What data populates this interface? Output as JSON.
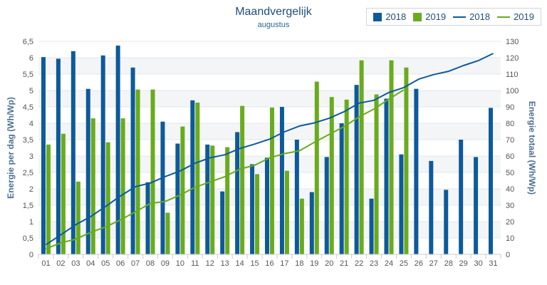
{
  "chart_data": {
    "type": "bar",
    "title": "Maandvergelijk",
    "subtitle": "augustus",
    "ylabel": "Energie per dag (Wh/Wp)",
    "y2label": "Energie totaal (Wh/Wp)",
    "ylim": [
      0,
      6.5
    ],
    "y2lim": [
      0,
      130
    ],
    "yticks": [
      "0",
      "0,5",
      "1",
      "1,5",
      "2",
      "2,5",
      "3",
      "3,5",
      "4",
      "4,5",
      "5",
      "5,5",
      "6",
      "6,5"
    ],
    "y2ticks": [
      "0",
      "10",
      "20",
      "30",
      "40",
      "50",
      "60",
      "70",
      "80",
      "90",
      "100",
      "110",
      "120",
      "130"
    ],
    "categories": [
      "01",
      "02",
      "03",
      "04",
      "05",
      "06",
      "07",
      "08",
      "09",
      "10",
      "11",
      "12",
      "13",
      "14",
      "15",
      "16",
      "17",
      "18",
      "19",
      "20",
      "21",
      "22",
      "23",
      "24",
      "25",
      "26",
      "27",
      "28",
      "29",
      "30",
      "31"
    ],
    "series": [
      {
        "name": "2018",
        "type": "bar",
        "axis": "left",
        "color": "#0d5a9b",
        "values": [
          6.02,
          5.97,
          6.2,
          5.05,
          6.07,
          6.37,
          5.7,
          2.2,
          4.05,
          3.38,
          4.7,
          3.35,
          1.92,
          3.73,
          2.75,
          2.95,
          4.5,
          3.5,
          1.9,
          2.97,
          4.0,
          5.17,
          1.7,
          4.75,
          3.05,
          5.05,
          2.85,
          1.97,
          3.5,
          2.97,
          4.47
        ]
      },
      {
        "name": "2019",
        "type": "bar",
        "axis": "left",
        "color": "#6aab1d",
        "values": [
          3.35,
          3.68,
          2.22,
          4.15,
          3.42,
          4.15,
          5.03,
          5.03,
          1.27,
          3.9,
          4.63,
          3.32,
          3.27,
          4.53,
          2.45,
          4.48,
          2.55,
          1.7,
          5.27,
          4.8,
          4.72,
          5.92,
          4.88,
          5.92,
          5.7,
          null,
          null,
          null,
          null,
          null,
          null
        ]
      },
      {
        "name": "2018",
        "type": "line",
        "axis": "right",
        "color": "#0d5a9b",
        "values": [
          5.9,
          11.9,
          18.1,
          23.1,
          29.2,
          35.6,
          41.3,
          43.5,
          47.5,
          50.9,
          55.6,
          58.9,
          60.8,
          64.6,
          67.3,
          70.3,
          74.8,
          78.3,
          80.2,
          83.1,
          87.1,
          92.3,
          94.0,
          98.8,
          101.8,
          106.9,
          109.7,
          111.7,
          115.2,
          118.2,
          122.6
        ]
      },
      {
        "name": "2019",
        "type": "line",
        "axis": "right",
        "color": "#6aab1d",
        "values": [
          3.4,
          7.0,
          9.3,
          13.4,
          16.8,
          21.0,
          26.0,
          31.1,
          32.3,
          36.2,
          40.9,
          44.2,
          47.4,
          52.0,
          54.4,
          58.9,
          61.5,
          63.2,
          68.4,
          73.2,
          78.0,
          83.9,
          88.7,
          94.7,
          100.4,
          null,
          null,
          null,
          null,
          null,
          null
        ]
      }
    ],
    "grid": "horizontal, alternating bands",
    "legend": "top-right"
  }
}
